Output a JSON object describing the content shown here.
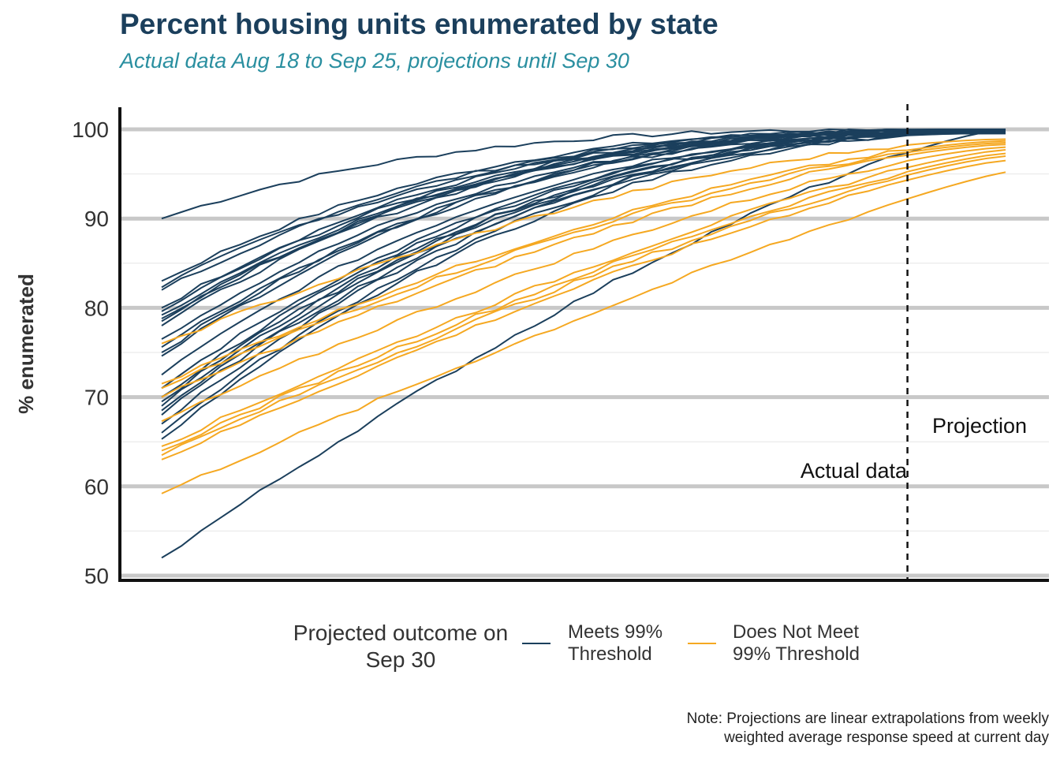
{
  "header": {
    "title": "Percent housing units enumerated by state",
    "subtitle": "Actual data Aug 18 to Sep 25, projections until Sep 30"
  },
  "colors": {
    "meets": "#1b3f5c",
    "not_meets": "#f5a821",
    "title": "#1b3f5c",
    "subtitle": "#2a8fa0",
    "grid": "#c8c8c8"
  },
  "chart_data": {
    "type": "line",
    "ylabel": "% enumerated",
    "xlabel": "",
    "ylim": [
      50,
      100
    ],
    "yticks": [
      "50",
      "60",
      "70",
      "80",
      "90",
      "100"
    ],
    "x_range_days": [
      0,
      43
    ],
    "projection_start_day": 38,
    "annotations": {
      "actual": "Actual data",
      "projection": "Projection"
    },
    "legend": {
      "title": "Projected outcome on Sep 30",
      "items": [
        {
          "key": "meets",
          "label": "Meets 99% Threshold"
        },
        {
          "key": "not_meets",
          "label": "Does Not Meet 99% Threshold"
        }
      ]
    },
    "series_meets_start_values": [
      90.0,
      83.0,
      82.3,
      82.0,
      80.0,
      79.6,
      79.2,
      78.8,
      78.5,
      78.0,
      76.5,
      75.6,
      75.0,
      74.6,
      72.5,
      71.0,
      70.0,
      69.0,
      68.5,
      68.0,
      67.0,
      66.0,
      65.3,
      69.5,
      52.0
    ],
    "series_not_meets_start_values": [
      76.0,
      71.5,
      71.0,
      70.0,
      67.3,
      64.5,
      64.0,
      63.5,
      63.0,
      59.2
    ],
    "series_not_meets_end_values": [
      98.9,
      98.7,
      98.5,
      98.3,
      98.0,
      97.7,
      97.3,
      97.0,
      96.5,
      95.2
    ]
  },
  "note": {
    "line1": "Note: Projections are linear extrapolations from weekly",
    "line2": "weighted average response speed at current day"
  }
}
